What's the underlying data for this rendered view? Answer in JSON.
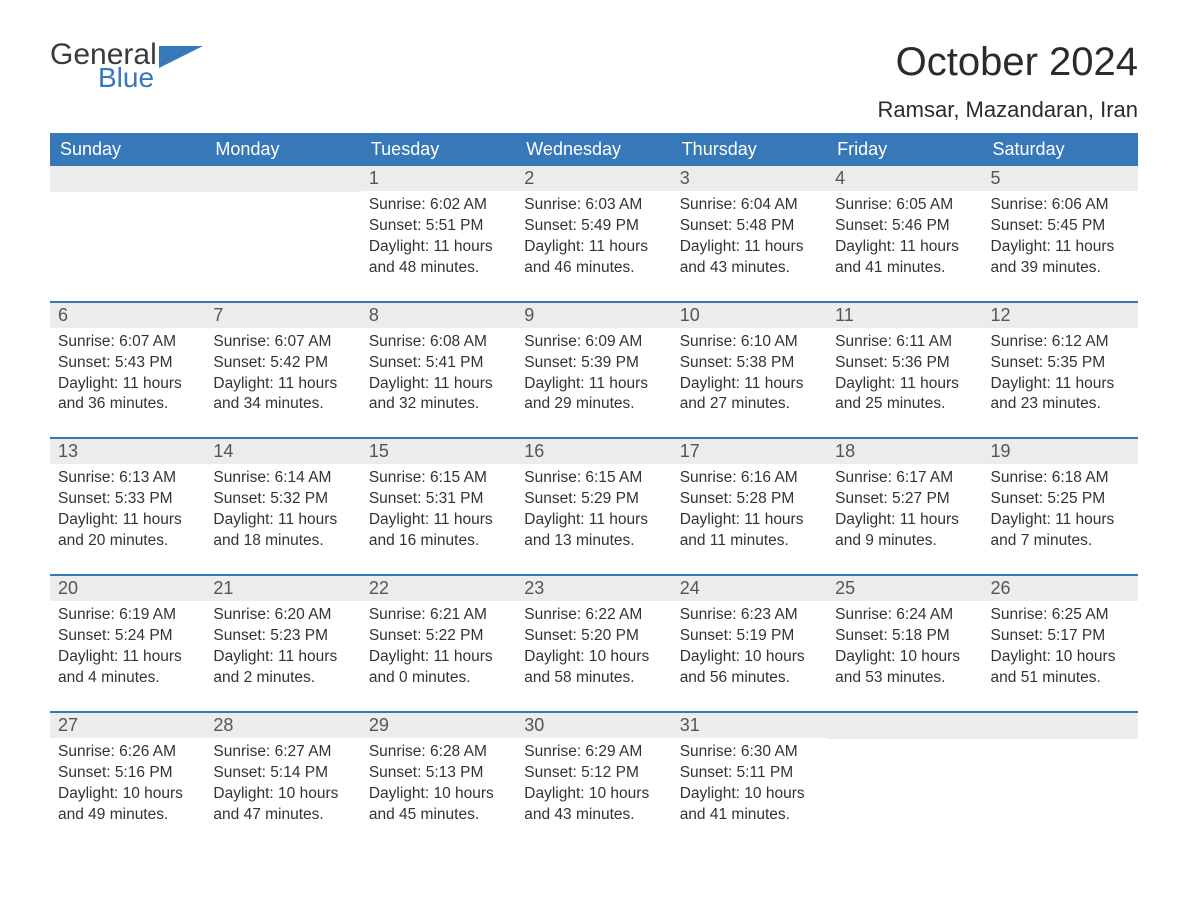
{
  "logo": {
    "general": "General",
    "blue": "Blue",
    "accent_color": "#3778b8"
  },
  "title": "October 2024",
  "location": "Ramsar, Mazandaran, Iran",
  "colors": {
    "header_bg": "#3778b8",
    "header_text": "#ffffff",
    "daynum_bg": "#ececec",
    "daynum_text": "#555555",
    "row_border": "#3778b8",
    "body_text": "#333333",
    "background": "#ffffff"
  },
  "weekdays": [
    "Sunday",
    "Monday",
    "Tuesday",
    "Wednesday",
    "Thursday",
    "Friday",
    "Saturday"
  ],
  "weeks": [
    [
      null,
      null,
      {
        "day": "1",
        "sunrise": "Sunrise: 6:02 AM",
        "sunset": "Sunset: 5:51 PM",
        "daylight1": "Daylight: 11 hours",
        "daylight2": "and 48 minutes."
      },
      {
        "day": "2",
        "sunrise": "Sunrise: 6:03 AM",
        "sunset": "Sunset: 5:49 PM",
        "daylight1": "Daylight: 11 hours",
        "daylight2": "and 46 minutes."
      },
      {
        "day": "3",
        "sunrise": "Sunrise: 6:04 AM",
        "sunset": "Sunset: 5:48 PM",
        "daylight1": "Daylight: 11 hours",
        "daylight2": "and 43 minutes."
      },
      {
        "day": "4",
        "sunrise": "Sunrise: 6:05 AM",
        "sunset": "Sunset: 5:46 PM",
        "daylight1": "Daylight: 11 hours",
        "daylight2": "and 41 minutes."
      },
      {
        "day": "5",
        "sunrise": "Sunrise: 6:06 AM",
        "sunset": "Sunset: 5:45 PM",
        "daylight1": "Daylight: 11 hours",
        "daylight2": "and 39 minutes."
      }
    ],
    [
      {
        "day": "6",
        "sunrise": "Sunrise: 6:07 AM",
        "sunset": "Sunset: 5:43 PM",
        "daylight1": "Daylight: 11 hours",
        "daylight2": "and 36 minutes."
      },
      {
        "day": "7",
        "sunrise": "Sunrise: 6:07 AM",
        "sunset": "Sunset: 5:42 PM",
        "daylight1": "Daylight: 11 hours",
        "daylight2": "and 34 minutes."
      },
      {
        "day": "8",
        "sunrise": "Sunrise: 6:08 AM",
        "sunset": "Sunset: 5:41 PM",
        "daylight1": "Daylight: 11 hours",
        "daylight2": "and 32 minutes."
      },
      {
        "day": "9",
        "sunrise": "Sunrise: 6:09 AM",
        "sunset": "Sunset: 5:39 PM",
        "daylight1": "Daylight: 11 hours",
        "daylight2": "and 29 minutes."
      },
      {
        "day": "10",
        "sunrise": "Sunrise: 6:10 AM",
        "sunset": "Sunset: 5:38 PM",
        "daylight1": "Daylight: 11 hours",
        "daylight2": "and 27 minutes."
      },
      {
        "day": "11",
        "sunrise": "Sunrise: 6:11 AM",
        "sunset": "Sunset: 5:36 PM",
        "daylight1": "Daylight: 11 hours",
        "daylight2": "and 25 minutes."
      },
      {
        "day": "12",
        "sunrise": "Sunrise: 6:12 AM",
        "sunset": "Sunset: 5:35 PM",
        "daylight1": "Daylight: 11 hours",
        "daylight2": "and 23 minutes."
      }
    ],
    [
      {
        "day": "13",
        "sunrise": "Sunrise: 6:13 AM",
        "sunset": "Sunset: 5:33 PM",
        "daylight1": "Daylight: 11 hours",
        "daylight2": "and 20 minutes."
      },
      {
        "day": "14",
        "sunrise": "Sunrise: 6:14 AM",
        "sunset": "Sunset: 5:32 PM",
        "daylight1": "Daylight: 11 hours",
        "daylight2": "and 18 minutes."
      },
      {
        "day": "15",
        "sunrise": "Sunrise: 6:15 AM",
        "sunset": "Sunset: 5:31 PM",
        "daylight1": "Daylight: 11 hours",
        "daylight2": "and 16 minutes."
      },
      {
        "day": "16",
        "sunrise": "Sunrise: 6:15 AM",
        "sunset": "Sunset: 5:29 PM",
        "daylight1": "Daylight: 11 hours",
        "daylight2": "and 13 minutes."
      },
      {
        "day": "17",
        "sunrise": "Sunrise: 6:16 AM",
        "sunset": "Sunset: 5:28 PM",
        "daylight1": "Daylight: 11 hours",
        "daylight2": "and 11 minutes."
      },
      {
        "day": "18",
        "sunrise": "Sunrise: 6:17 AM",
        "sunset": "Sunset: 5:27 PM",
        "daylight1": "Daylight: 11 hours",
        "daylight2": "and 9 minutes."
      },
      {
        "day": "19",
        "sunrise": "Sunrise: 6:18 AM",
        "sunset": "Sunset: 5:25 PM",
        "daylight1": "Daylight: 11 hours",
        "daylight2": "and 7 minutes."
      }
    ],
    [
      {
        "day": "20",
        "sunrise": "Sunrise: 6:19 AM",
        "sunset": "Sunset: 5:24 PM",
        "daylight1": "Daylight: 11 hours",
        "daylight2": "and 4 minutes."
      },
      {
        "day": "21",
        "sunrise": "Sunrise: 6:20 AM",
        "sunset": "Sunset: 5:23 PM",
        "daylight1": "Daylight: 11 hours",
        "daylight2": "and 2 minutes."
      },
      {
        "day": "22",
        "sunrise": "Sunrise: 6:21 AM",
        "sunset": "Sunset: 5:22 PM",
        "daylight1": "Daylight: 11 hours",
        "daylight2": "and 0 minutes."
      },
      {
        "day": "23",
        "sunrise": "Sunrise: 6:22 AM",
        "sunset": "Sunset: 5:20 PM",
        "daylight1": "Daylight: 10 hours",
        "daylight2": "and 58 minutes."
      },
      {
        "day": "24",
        "sunrise": "Sunrise: 6:23 AM",
        "sunset": "Sunset: 5:19 PM",
        "daylight1": "Daylight: 10 hours",
        "daylight2": "and 56 minutes."
      },
      {
        "day": "25",
        "sunrise": "Sunrise: 6:24 AM",
        "sunset": "Sunset: 5:18 PM",
        "daylight1": "Daylight: 10 hours",
        "daylight2": "and 53 minutes."
      },
      {
        "day": "26",
        "sunrise": "Sunrise: 6:25 AM",
        "sunset": "Sunset: 5:17 PM",
        "daylight1": "Daylight: 10 hours",
        "daylight2": "and 51 minutes."
      }
    ],
    [
      {
        "day": "27",
        "sunrise": "Sunrise: 6:26 AM",
        "sunset": "Sunset: 5:16 PM",
        "daylight1": "Daylight: 10 hours",
        "daylight2": "and 49 minutes."
      },
      {
        "day": "28",
        "sunrise": "Sunrise: 6:27 AM",
        "sunset": "Sunset: 5:14 PM",
        "daylight1": "Daylight: 10 hours",
        "daylight2": "and 47 minutes."
      },
      {
        "day": "29",
        "sunrise": "Sunrise: 6:28 AM",
        "sunset": "Sunset: 5:13 PM",
        "daylight1": "Daylight: 10 hours",
        "daylight2": "and 45 minutes."
      },
      {
        "day": "30",
        "sunrise": "Sunrise: 6:29 AM",
        "sunset": "Sunset: 5:12 PM",
        "daylight1": "Daylight: 10 hours",
        "daylight2": "and 43 minutes."
      },
      {
        "day": "31",
        "sunrise": "Sunrise: 6:30 AM",
        "sunset": "Sunset: 5:11 PM",
        "daylight1": "Daylight: 10 hours",
        "daylight2": "and 41 minutes."
      },
      null,
      null
    ]
  ]
}
